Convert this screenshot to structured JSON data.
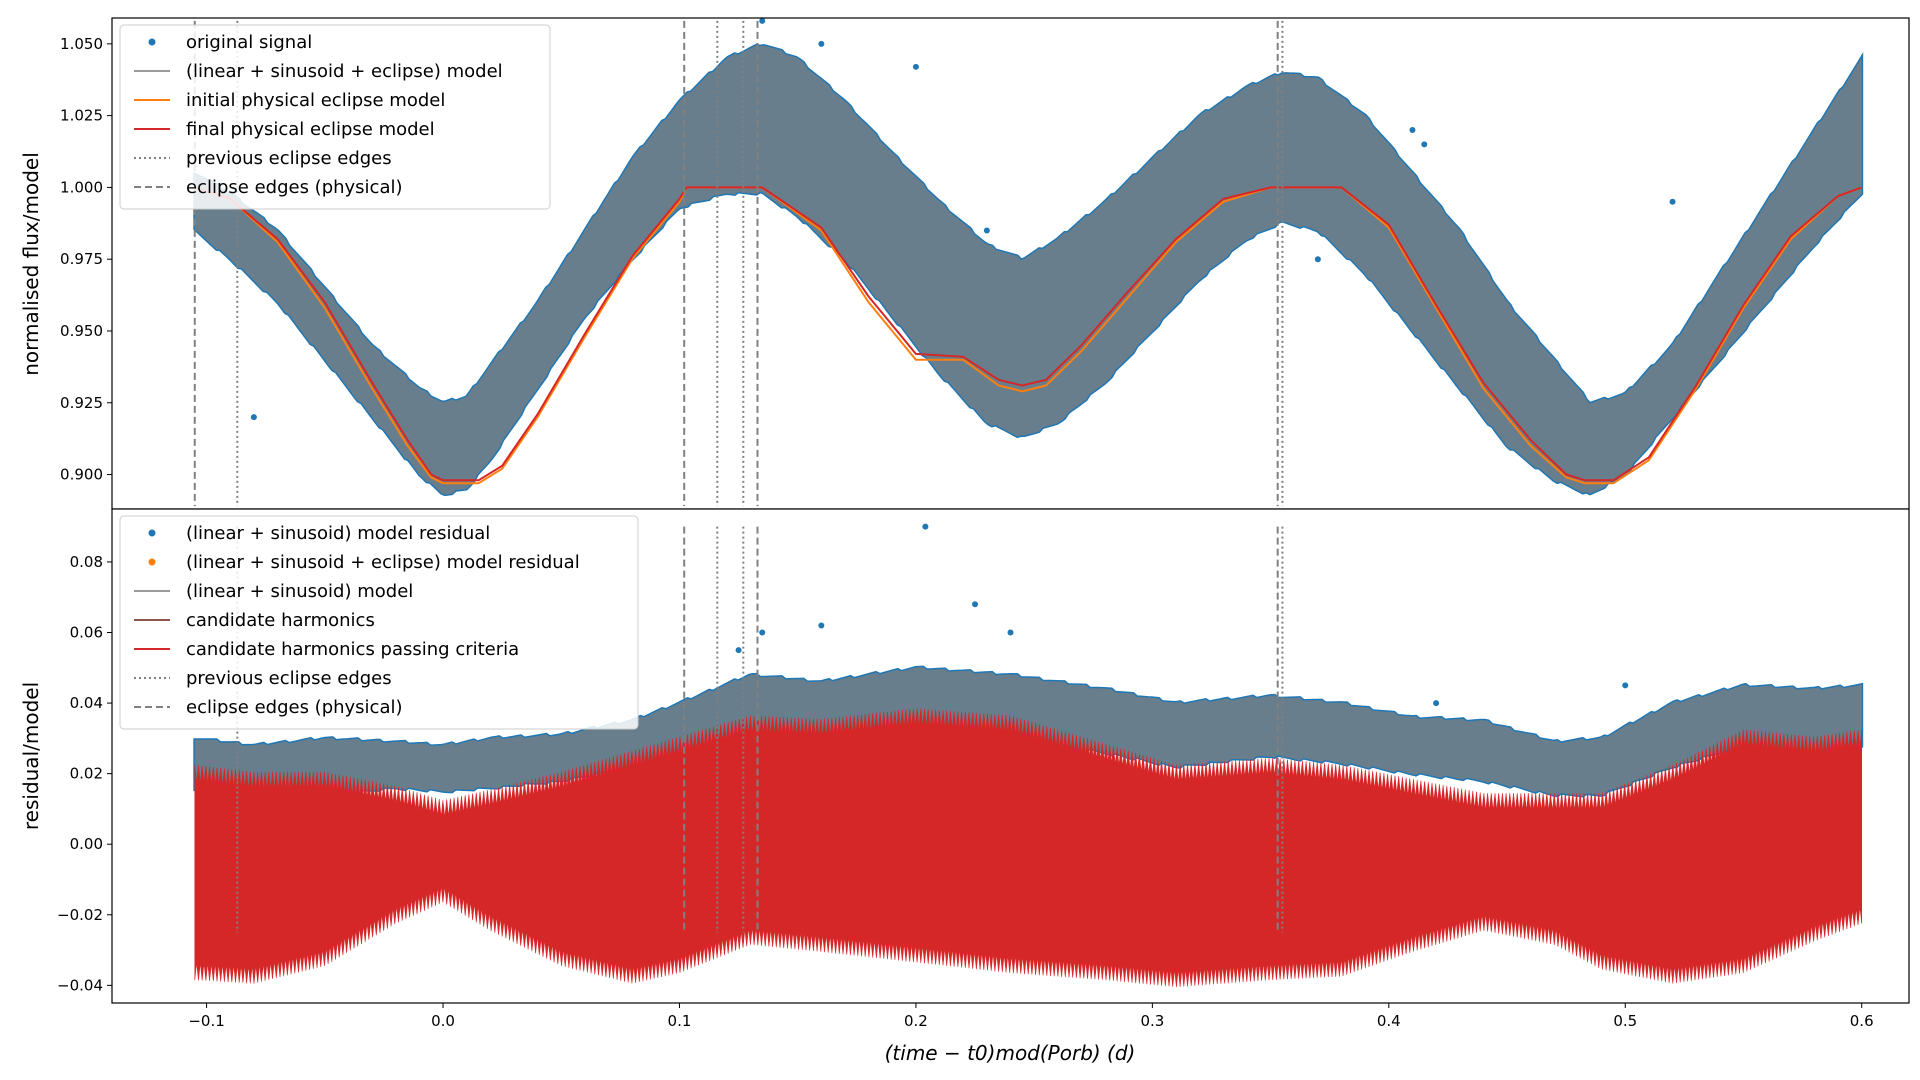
{
  "chart_data": [
    {
      "type": "line",
      "ylabel": "normalised flux/model",
      "xlim": [
        -0.14,
        0.62
      ],
      "ylim": [
        0.888,
        1.059
      ],
      "yticks": [
        0.9,
        0.925,
        0.95,
        0.975,
        1.0,
        1.025,
        1.05
      ],
      "ytick_labels": [
        "0.900",
        "0.925",
        "0.950",
        "0.975",
        "1.000",
        "1.025",
        "1.050"
      ],
      "legend": [
        {
          "label": "original signal",
          "style": "dot",
          "color": "#1f77b4"
        },
        {
          "label": "(linear + sinusoid + eclipse) model",
          "style": "line",
          "color": "#9a9a9a"
        },
        {
          "label": "initial physical eclipse model",
          "style": "line",
          "color": "#ff7f0e"
        },
        {
          "label": "final physical eclipse model",
          "style": "line",
          "color": "#d62728"
        },
        {
          "label": "previous eclipse edges",
          "style": "dotted",
          "color": "#808080"
        },
        {
          "label": "eclipse edges (physical)",
          "style": "dashed",
          "color": "#808080"
        }
      ],
      "legend_position": "upper-left",
      "band": {
        "name": "original signal",
        "x": [
          -0.105,
          -0.09,
          -0.07,
          -0.05,
          -0.03,
          -0.01,
          0.0,
          0.01,
          0.02,
          0.04,
          0.06,
          0.08,
          0.1,
          0.12,
          0.135,
          0.15,
          0.17,
          0.19,
          0.21,
          0.23,
          0.245,
          0.26,
          0.28,
          0.3,
          0.32,
          0.34,
          0.355,
          0.37,
          0.39,
          0.41,
          0.43,
          0.45,
          0.47,
          0.485,
          0.5,
          0.52,
          0.54,
          0.56,
          0.58,
          0.6
        ],
        "upper": [
          1.005,
          0.998,
          0.985,
          0.965,
          0.945,
          0.93,
          0.925,
          0.927,
          0.938,
          0.96,
          0.985,
          1.01,
          1.03,
          1.045,
          1.05,
          1.045,
          1.03,
          1.012,
          0.995,
          0.98,
          0.975,
          0.982,
          0.995,
          1.01,
          1.025,
          1.035,
          1.04,
          1.038,
          1.025,
          1.005,
          0.985,
          0.96,
          0.94,
          0.925,
          0.928,
          0.945,
          0.97,
          0.995,
          1.02,
          1.045
        ],
        "lower": [
          0.985,
          0.975,
          0.96,
          0.94,
          0.92,
          0.9,
          0.893,
          0.895,
          0.905,
          0.93,
          0.955,
          0.975,
          0.993,
          0.998,
          0.998,
          0.99,
          0.975,
          0.955,
          0.935,
          0.918,
          0.913,
          0.918,
          0.932,
          0.95,
          0.968,
          0.982,
          0.988,
          0.985,
          0.97,
          0.95,
          0.93,
          0.91,
          0.898,
          0.893,
          0.9,
          0.92,
          0.94,
          0.96,
          0.98,
          0.998
        ]
      },
      "series": [
        {
          "name": "initial physical eclipse model",
          "color": "#ff7f0e",
          "x": [
            -0.105,
            -0.09,
            -0.07,
            -0.05,
            -0.03,
            -0.015,
            -0.005,
            0.0,
            0.015,
            0.025,
            0.04,
            0.06,
            0.08,
            0.1,
            0.103,
            0.135,
            0.16,
            0.18,
            0.2,
            0.22,
            0.235,
            0.245,
            0.255,
            0.27,
            0.29,
            0.31,
            0.33,
            0.35,
            0.355,
            0.38,
            0.4,
            0.42,
            0.44,
            0.46,
            0.475,
            0.483,
            0.495,
            0.51,
            0.53,
            0.55,
            0.57,
            0.59,
            0.6
          ],
          "y": [
            1.0,
            0.996,
            0.981,
            0.958,
            0.93,
            0.91,
            0.899,
            0.897,
            0.897,
            0.902,
            0.92,
            0.948,
            0.975,
            0.995,
            1.0,
            1.0,
            0.985,
            0.96,
            0.94,
            0.94,
            0.931,
            0.929,
            0.931,
            0.943,
            0.962,
            0.981,
            0.995,
            1.0,
            1.0,
            1.0,
            0.986,
            0.958,
            0.93,
            0.91,
            0.899,
            0.897,
            0.897,
            0.905,
            0.93,
            0.958,
            0.982,
            0.997,
            1.0
          ]
        },
        {
          "name": "final physical eclipse model",
          "color": "#d62728",
          "x": [
            -0.105,
            -0.09,
            -0.07,
            -0.05,
            -0.03,
            -0.015,
            -0.005,
            0.0,
            0.015,
            0.025,
            0.04,
            0.06,
            0.08,
            0.1,
            0.103,
            0.135,
            0.16,
            0.18,
            0.2,
            0.22,
            0.235,
            0.245,
            0.255,
            0.27,
            0.29,
            0.31,
            0.33,
            0.35,
            0.355,
            0.38,
            0.4,
            0.42,
            0.44,
            0.46,
            0.475,
            0.483,
            0.495,
            0.51,
            0.53,
            0.55,
            0.57,
            0.59,
            0.6
          ],
          "y": [
            1.0,
            0.996,
            0.982,
            0.96,
            0.932,
            0.912,
            0.9,
            0.898,
            0.898,
            0.903,
            0.921,
            0.949,
            0.976,
            0.996,
            1.0,
            1.0,
            0.986,
            0.962,
            0.942,
            0.941,
            0.933,
            0.931,
            0.933,
            0.945,
            0.964,
            0.982,
            0.996,
            1.0,
            1.0,
            1.0,
            0.987,
            0.959,
            0.932,
            0.912,
            0.9,
            0.898,
            0.898,
            0.906,
            0.931,
            0.959,
            0.983,
            0.997,
            1.0
          ]
        }
      ],
      "outliers": [
        [
          0.135,
          1.058
        ],
        [
          0.16,
          1.05
        ],
        [
          0.2,
          1.042
        ],
        [
          0.41,
          1.02
        ],
        [
          0.415,
          1.015
        ],
        [
          0.52,
          0.995
        ],
        [
          -0.08,
          0.92
        ],
        [
          0.37,
          0.975
        ],
        [
          0.23,
          0.985
        ]
      ],
      "vlines_dotted": [
        -0.087,
        0.116,
        0.127,
        0.355
      ],
      "vlines_dashed": [
        -0.105,
        0.102,
        0.133,
        0.353
      ]
    },
    {
      "type": "line",
      "xlabel": "(time − t0)mod(Porb) (d)",
      "ylabel": "residual/model",
      "xlim": [
        -0.14,
        0.62
      ],
      "ylim": [
        -0.045,
        0.095
      ],
      "xticks": [
        -0.1,
        0.0,
        0.1,
        0.2,
        0.3,
        0.4,
        0.5,
        0.6
      ],
      "xtick_labels": [
        "−0.1",
        "0.0",
        "0.1",
        "0.2",
        "0.3",
        "0.4",
        "0.5",
        "0.6"
      ],
      "yticks": [
        -0.04,
        -0.02,
        0.0,
        0.02,
        0.04,
        0.06,
        0.08
      ],
      "ytick_labels": [
        "−0.04",
        "−0.02",
        "0.00",
        "0.02",
        "0.04",
        "0.06",
        "0.08"
      ],
      "legend": [
        {
          "label": "(linear + sinusoid) model residual",
          "style": "dot",
          "color": "#1f77b4"
        },
        {
          "label": "(linear + sinusoid + eclipse) model residual",
          "style": "dot",
          "color": "#ff7f0e"
        },
        {
          "label": "(linear + sinusoid) model",
          "style": "line",
          "color": "#9a9a9a"
        },
        {
          "label": "candidate harmonics",
          "style": "line",
          "color": "#8c564b"
        },
        {
          "label": "candidate harmonics passing criteria",
          "style": "line",
          "color": "#d62728"
        },
        {
          "label": "previous eclipse edges",
          "style": "dotted",
          "color": "#808080"
        },
        {
          "label": "eclipse edges (physical)",
          "style": "dashed",
          "color": "#808080"
        }
      ],
      "legend_position": "upper-left",
      "band": {
        "name": "(linear + sinusoid) model residual",
        "x": [
          -0.105,
          -0.08,
          -0.05,
          -0.02,
          0.0,
          0.02,
          0.05,
          0.08,
          0.1,
          0.13,
          0.16,
          0.2,
          0.24,
          0.28,
          0.31,
          0.35,
          0.38,
          0.41,
          0.44,
          0.47,
          0.49,
          0.52,
          0.55,
          0.58,
          0.6
        ],
        "upper": [
          0.03,
          0.028,
          0.03,
          0.029,
          0.028,
          0.03,
          0.031,
          0.035,
          0.04,
          0.048,
          0.046,
          0.05,
          0.048,
          0.044,
          0.04,
          0.042,
          0.04,
          0.036,
          0.035,
          0.029,
          0.03,
          0.04,
          0.045,
          0.044,
          0.045
        ],
        "lower": [
          0.015,
          0.012,
          0.014,
          0.016,
          0.015,
          0.016,
          0.018,
          0.022,
          0.025,
          0.03,
          0.03,
          0.032,
          0.03,
          0.026,
          0.022,
          0.025,
          0.023,
          0.02,
          0.018,
          0.014,
          0.014,
          0.022,
          0.028,
          0.026,
          0.028
        ]
      },
      "series": [
        {
          "name": "candidate harmonics passing criteria",
          "color": "#d62728",
          "x": [
            -0.105,
            -0.08,
            -0.05,
            -0.02,
            0.0,
            0.02,
            0.05,
            0.08,
            0.1,
            0.13,
            0.16,
            0.2,
            0.24,
            0.28,
            0.31,
            0.35,
            0.38,
            0.41,
            0.44,
            0.47,
            0.49,
            0.52,
            0.55,
            0.58,
            0.6
          ],
          "upper": [
            0.02,
            0.018,
            0.018,
            0.014,
            0.01,
            0.013,
            0.018,
            0.024,
            0.028,
            0.034,
            0.033,
            0.036,
            0.034,
            0.026,
            0.02,
            0.022,
            0.02,
            0.016,
            0.012,
            0.012,
            0.012,
            0.02,
            0.03,
            0.028,
            0.03
          ],
          "lower": [
            -0.036,
            -0.037,
            -0.032,
            -0.02,
            -0.014,
            -0.022,
            -0.032,
            -0.037,
            -0.034,
            -0.026,
            -0.028,
            -0.031,
            -0.034,
            -0.036,
            -0.038,
            -0.036,
            -0.035,
            -0.028,
            -0.022,
            -0.026,
            -0.033,
            -0.037,
            -0.034,
            -0.025,
            -0.02
          ]
        }
      ],
      "outliers": [
        [
          0.204,
          0.09
        ],
        [
          0.225,
          0.068
        ],
        [
          0.16,
          0.062
        ],
        [
          0.135,
          0.06
        ],
        [
          0.24,
          0.06
        ],
        [
          0.42,
          0.04
        ],
        [
          0.5,
          0.045
        ],
        [
          0.125,
          0.055
        ]
      ],
      "vlines_dotted": [
        -0.087,
        0.116,
        0.127,
        0.355
      ],
      "vlines_dashed": [
        0.102,
        0.133,
        0.353
      ]
    }
  ]
}
